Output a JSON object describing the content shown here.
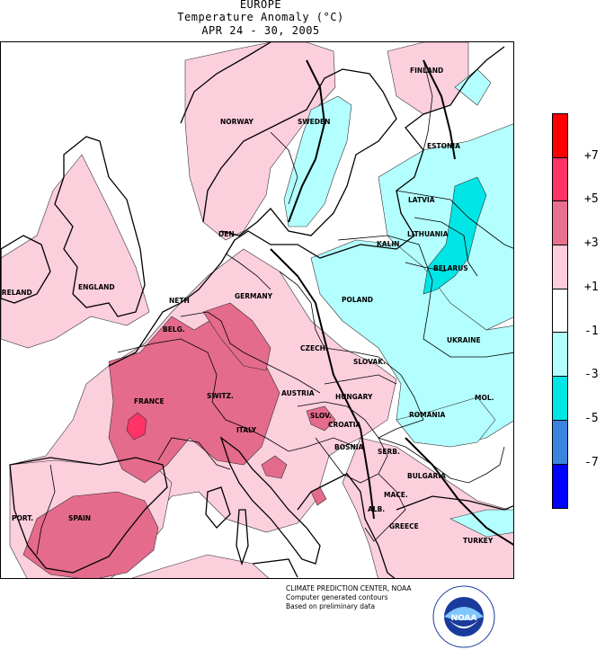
{
  "header": {
    "region": "EUROPE",
    "subtitle": "Temperature Anomaly (°C)",
    "dates": "APR 24 - 30, 2005"
  },
  "labels": {
    "finland": "FINLAND",
    "norway": "NORWAY",
    "sweden": "SWEDEN",
    "estonia": "ESTONIA",
    "latvia": "LATVIA",
    "lithuania": "LITHUANIA",
    "kalin": "KALIN.",
    "belarus": "BELARUS",
    "den": "DEN",
    "ireland": "IRELAND",
    "england": "ENGLAND",
    "neth": "NETH",
    "belg": "BELG.",
    "germany": "GERMANY",
    "poland": "POLAND",
    "ukraine": "UKRAINE",
    "czech": "CZECH.",
    "slovak": "SLOVAK.",
    "mol": "MOL.",
    "france": "FRANCE",
    "switz": "SWITZ.",
    "austria": "AUSTRIA",
    "hungary": "HUNGARY",
    "slov": "SLOV.",
    "croatia": "CROATIA",
    "romania": "ROMANIA",
    "bosnia": "BOSNIA",
    "serb": "SERB.",
    "italy": "ITALY",
    "bulgaria": "BULGARIA",
    "mace": "MACE.",
    "alb": "ALB.",
    "greece": "GREECE",
    "turkey": "TURKEY",
    "portugal": "PORT.",
    "spain": "SPAIN"
  },
  "legend": {
    "ticks": [
      "+7",
      "+5",
      "+3",
      "+1",
      "-1",
      "-3",
      "-5",
      "-7"
    ],
    "colors": [
      "#ff0000",
      "#ff3366",
      "#e8708f",
      "#ffccdd",
      "#ffffff",
      "#b3ffff",
      "#00e5e5",
      "#3a84e0",
      "#0000ff"
    ]
  },
  "map_colors": {
    "ocean": "#ffffff",
    "anom_plus1_to_3": "#fccfdd",
    "anom_plus3_to_5": "#e46b8c",
    "anom_plus5_to_7": "#ff3366",
    "anom_minus1_to_3": "#b3ffff",
    "anom_minus3_to_5": "#00e5e5"
  },
  "credits": {
    "line1": "CLIMATE PREDICTION CENTER, NOAA",
    "line2": "Computer generated contours",
    "line3": "Based on preliminary data"
  },
  "logo": {
    "text": "NOAA",
    "ring_text": "NATIONAL OCEANIC AND ATMOSPHERIC ADMINISTRATION · U.S. DEPARTMENT OF COMMERCE"
  }
}
